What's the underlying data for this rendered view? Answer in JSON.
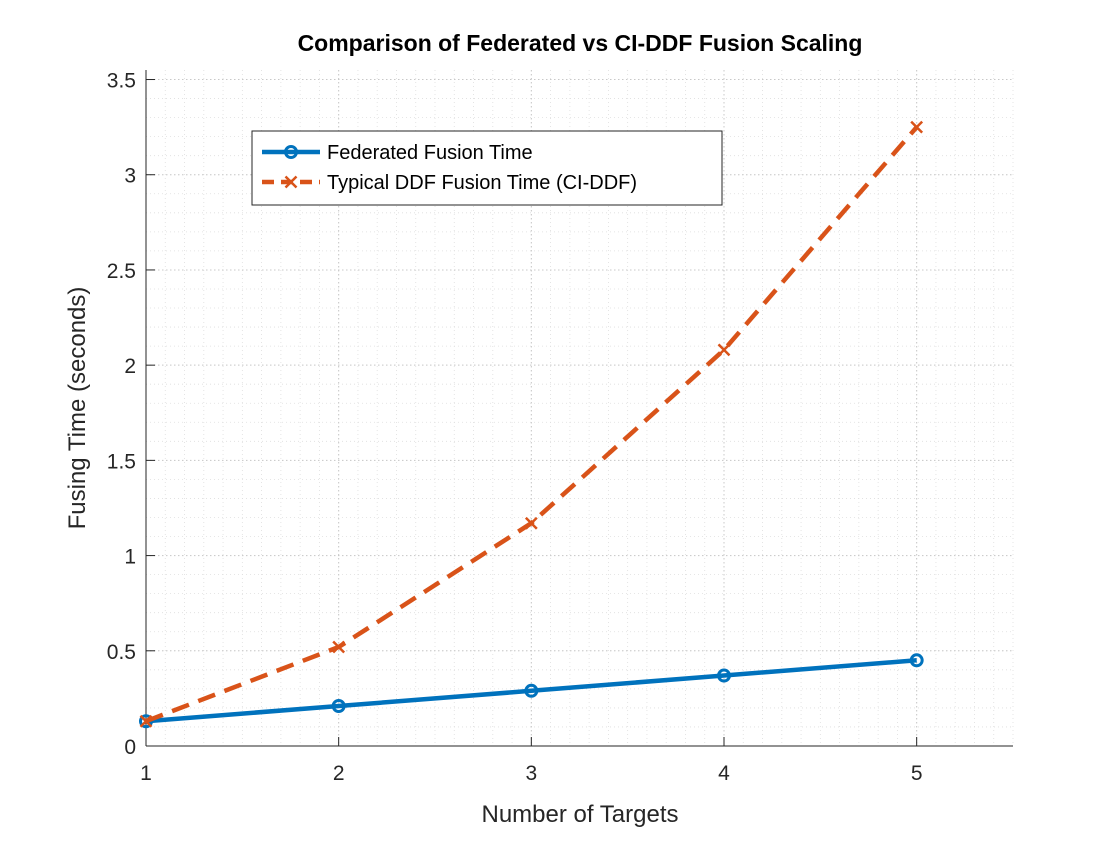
{
  "chart_data": {
    "type": "line",
    "title": "Comparison of Federated vs CI-DDF Fusion Scaling",
    "xlabel": "Number of Targets",
    "ylabel": "Fusing Time (seconds)",
    "xlim": [
      1,
      5.5
    ],
    "ylim": [
      0,
      3.55
    ],
    "xticks": [
      1,
      2,
      3,
      4,
      5
    ],
    "xtick_labels": [
      "1",
      "2",
      "3",
      "4",
      "5"
    ],
    "yticks": [
      0,
      0.5,
      1,
      1.5,
      2,
      2.5,
      3,
      3.5
    ],
    "ytick_labels": [
      "0",
      "0.5",
      "1",
      "1.5",
      "2",
      "2.5",
      "3",
      "3.5"
    ],
    "grid": "on (major and minor, dotted)",
    "legend_placement": "upper-left, inside axes",
    "x": [
      1,
      2,
      3,
      4,
      5
    ],
    "series": [
      {
        "name": "Federated Fusion Time",
        "values": [
          0.13,
          0.21,
          0.29,
          0.37,
          0.45
        ],
        "color": "#0072BD",
        "line_style": "solid",
        "marker": "circle"
      },
      {
        "name": "Typical DDF Fusion Time (CI-DDF)",
        "values": [
          0.13,
          0.52,
          1.17,
          2.08,
          3.25
        ],
        "color": "#D95319",
        "line_style": "dashed",
        "marker": "x"
      }
    ],
    "colors": {
      "axis": "#262626",
      "grid": "#c8c8c8"
    }
  }
}
